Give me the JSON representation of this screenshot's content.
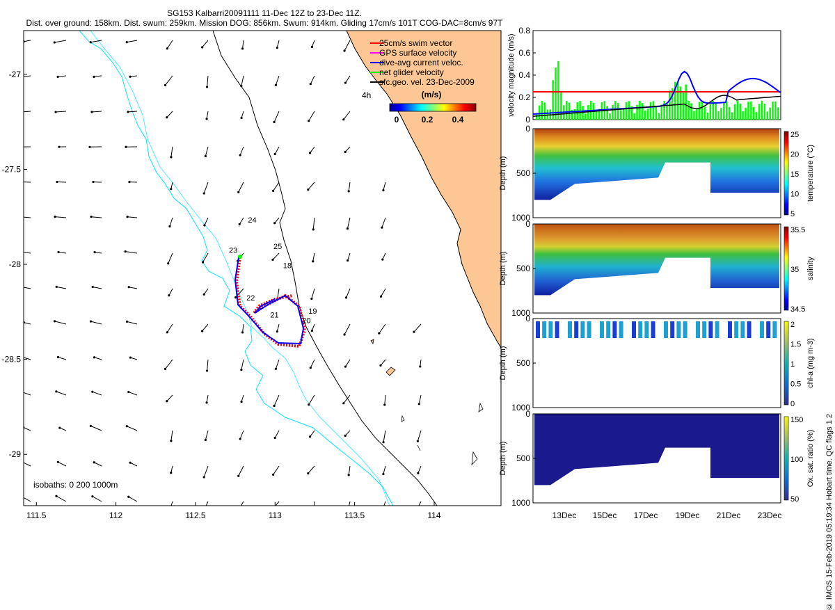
{
  "title_line1": "SG153 Kalbarri20091111 11-Dec 12Z to 23-Dec 11Z.",
  "title_line2": "Dist. over ground: 158km. Dist. swum: 259km. Mission DOG: 856km. Swum: 914km. Gliding 17cm/s 101T COG-DAC=8cm/s 97T",
  "map": {
    "lon_ticks": [
      "111.5",
      "112",
      "112.5",
      "113",
      "113.5",
      "114"
    ],
    "lat_ticks": [
      "-27",
      "-27.5",
      "-28",
      "-28.5",
      "-29"
    ],
    "lon_range": [
      111.42,
      114.42
    ],
    "lat_range": [
      -29.27,
      -26.77
    ],
    "legend": [
      {
        "label": "25cm/s swim vector",
        "color": "#ff0000"
      },
      {
        "label": "GPS surface velocity",
        "color": "#ff00ff"
      },
      {
        "label": "dive-avg current veloc.",
        "color": "#0000ff"
      },
      {
        "label": "net glider velocity",
        "color": "#00ff00"
      },
      {
        "label": "sfc.geo. vel. 23-Dec-2009",
        "color": "#000000"
      }
    ],
    "timestamp_label": "4h",
    "colorbar": {
      "unit": "(m/s)",
      "ticks": [
        "0",
        "0.2",
        "0.4"
      ]
    },
    "day_labels": [
      {
        "text": "24",
        "lon": 112.83,
        "lat": -27.78
      },
      {
        "text": "25",
        "lon": 112.99,
        "lat": -27.92
      },
      {
        "text": "23",
        "lon": 112.71,
        "lat": -27.94
      },
      {
        "text": "18",
        "lon": 113.05,
        "lat": -28.02
      },
      {
        "text": "22",
        "lon": 112.82,
        "lat": -28.19
      },
      {
        "text": "21",
        "lon": 112.97,
        "lat": -28.28
      },
      {
        "text": "19",
        "lon": 113.21,
        "lat": -28.26
      },
      {
        "text": "20",
        "lon": 113.17,
        "lat": -28.31
      }
    ],
    "isobath_label": "isobaths: 0   200  1000m",
    "colors": {
      "land": "#fcc795",
      "isobath_200": "#00e5ff",
      "isobath_1000": "#000000",
      "track_blue": "#0000ff",
      "swim_red": "#ff0000"
    }
  },
  "timeseries": {
    "velocity": {
      "ylabel": "velocity magnitude (m/s)",
      "yticks": [
        "0",
        "0.2",
        "0.4",
        "0.6",
        "0.8"
      ],
      "ylim": [
        0,
        0.8
      ],
      "threshold": 0.25
    },
    "x_ticks": [
      "13Dec",
      "15Dec",
      "17Dec",
      "19Dec",
      "21Dec",
      "23Dec"
    ],
    "sections": [
      {
        "ylabel": "Depth (m)",
        "cbar_label": "temperature (°C)",
        "cbar_ticks": [
          "5",
          "10",
          "15",
          "20",
          "25"
        ],
        "y_ticks": [
          "0",
          "500",
          "1000"
        ]
      },
      {
        "ylabel": "Depth (m)",
        "cbar_label": "salinity",
        "cbar_ticks": [
          "34.5",
          "35",
          "35.5"
        ],
        "y_ticks": [
          "0",
          "500",
          "1000"
        ]
      },
      {
        "ylabel": "Depth (m)",
        "cbar_label": "chl-a (mg m-3)",
        "cbar_ticks": [
          "0",
          "0.5",
          "1",
          "1.5",
          "2"
        ],
        "y_ticks": [
          "0",
          "500",
          "1000"
        ]
      },
      {
        "ylabel": "Depth (m)",
        "cbar_label": "Ox. sat. ratio (%)",
        "cbar_ticks": [
          "50",
          "100",
          "150"
        ],
        "y_ticks": [
          "0",
          "500",
          "1000"
        ]
      }
    ]
  },
  "copyright": "© IMOS 15-Feb-2019 05:19:34 Hobart time. QC flags 1  2"
}
